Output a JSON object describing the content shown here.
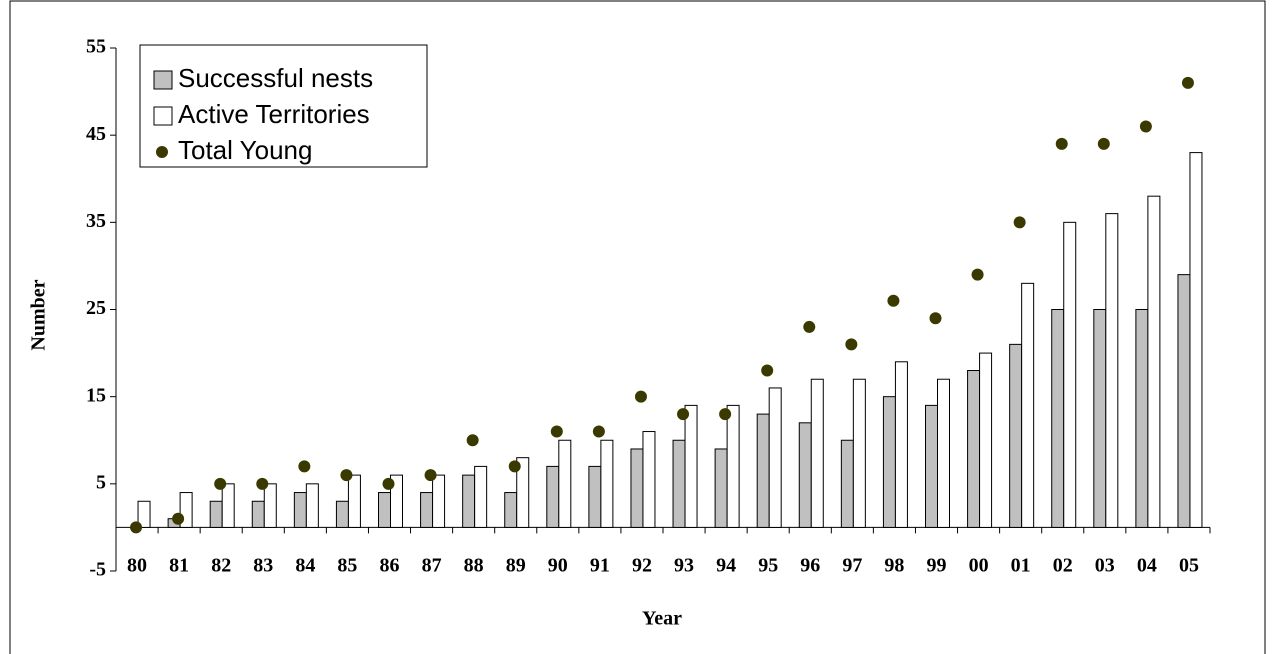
{
  "chart_data": {
    "type": "bar",
    "x_label": "Year",
    "y_label": "Number",
    "categories": [
      "80",
      "81",
      "82",
      "83",
      "84",
      "85",
      "86",
      "87",
      "88",
      "89",
      "90",
      "91",
      "92",
      "93",
      "94",
      "95",
      "96",
      "97",
      "98",
      "99",
      "00",
      "01",
      "02",
      "03",
      "04",
      "05"
    ],
    "series": [
      {
        "name": "Successful nests",
        "color": "#c0c0c0",
        "values": [
          0,
          1,
          3,
          3,
          4,
          3,
          4,
          4,
          6,
          4,
          7,
          7,
          9,
          10,
          9,
          13,
          12,
          10,
          15,
          14,
          18,
          21,
          25,
          25,
          25,
          29
        ]
      },
      {
        "name": "Active Territories",
        "color": "#ffffff",
        "values": [
          3,
          4,
          5,
          5,
          5,
          6,
          6,
          6,
          7,
          8,
          10,
          10,
          11,
          14,
          14,
          16,
          17,
          17,
          19,
          17,
          20,
          28,
          35,
          36,
          38,
          43
        ]
      },
      {
        "name": "Total Young",
        "type": "scatter",
        "color": "#3a3a00",
        "values": [
          0,
          1,
          5,
          5,
          7,
          6,
          5,
          6,
          10,
          7,
          11,
          11,
          15,
          13,
          13,
          18,
          23,
          21,
          26,
          24,
          29,
          35,
          44,
          44,
          46,
          51
        ]
      }
    ],
    "ylim": [
      -5,
      55
    ],
    "yticks": [
      -5,
      5,
      15,
      25,
      35,
      45,
      55
    ],
    "legend": "upper left"
  }
}
